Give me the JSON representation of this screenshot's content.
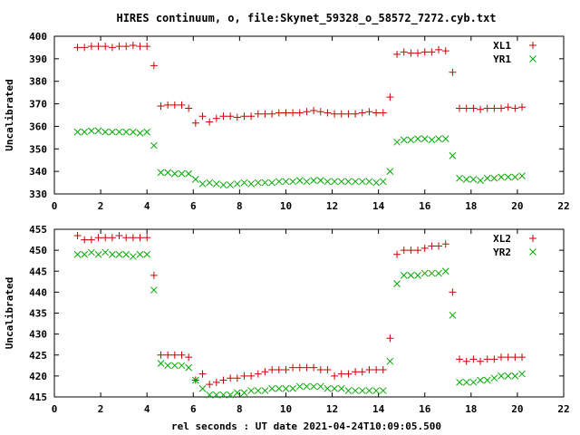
{
  "chart_title": "HIRES continuum, o, file:Skynet_59328_o_58572_7272.cyb.txt",
  "chart_data": [
    {
      "type": "scatter",
      "ylabel": "Uncalibrated",
      "xlabel": "",
      "xlim": [
        0,
        22
      ],
      "ylim": [
        330,
        400
      ],
      "xticks": [
        0,
        2,
        4,
        6,
        8,
        10,
        12,
        14,
        16,
        18,
        20,
        22
      ],
      "yticks": [
        330,
        340,
        350,
        360,
        370,
        380,
        390,
        400
      ],
      "legend_position": "top-right",
      "series": [
        {
          "name": "XL1",
          "marker": "+",
          "color": "#cc0000",
          "x": [
            1.0,
            1.3,
            1.6,
            1.9,
            2.2,
            2.5,
            2.8,
            3.1,
            3.4,
            3.7,
            4.0,
            4.3,
            4.6,
            4.9,
            5.2,
            5.5,
            5.8,
            6.1,
            6.4,
            6.7,
            7.0,
            7.3,
            7.6,
            7.9,
            8.2,
            8.5,
            8.8,
            9.1,
            9.4,
            9.7,
            10.0,
            10.3,
            10.6,
            10.9,
            11.2,
            11.5,
            11.8,
            12.1,
            12.4,
            12.7,
            13.0,
            13.3,
            13.6,
            13.9,
            14.2,
            14.5,
            14.8,
            15.1,
            15.4,
            15.7,
            16.0,
            16.3,
            16.6,
            16.9,
            17.2,
            17.5,
            17.8,
            18.1,
            18.4,
            18.7,
            19.0,
            19.3,
            19.6,
            19.9,
            20.2
          ],
          "y": [
            395,
            395,
            395.5,
            395.5,
            395.5,
            395,
            395.5,
            395.5,
            396,
            395.5,
            395.5,
            387,
            369,
            369.5,
            369.5,
            369.5,
            368,
            361.5,
            364.5,
            362,
            363.5,
            364.5,
            364.5,
            364,
            364.5,
            364.5,
            365.5,
            365.5,
            365.5,
            366,
            366,
            366,
            366,
            366.5,
            367,
            366.5,
            366,
            365.5,
            365.5,
            365.5,
            365.5,
            366,
            366.5,
            366,
            366,
            373,
            392,
            393,
            392.5,
            392.5,
            393,
            393,
            394,
            393.5,
            384,
            368,
            368,
            368,
            367.5,
            368,
            368,
            368,
            368.5,
            368,
            368.5
          ]
        },
        {
          "name": "YR1",
          "marker": "x",
          "color": "#00aa00",
          "x": [
            1.0,
            1.3,
            1.6,
            1.9,
            2.2,
            2.5,
            2.8,
            3.1,
            3.4,
            3.7,
            4.0,
            4.3,
            4.6,
            4.9,
            5.2,
            5.5,
            5.8,
            6.1,
            6.4,
            6.7,
            7.0,
            7.3,
            7.6,
            7.9,
            8.2,
            8.5,
            8.8,
            9.1,
            9.4,
            9.7,
            10.0,
            10.3,
            10.6,
            10.9,
            11.2,
            11.5,
            11.8,
            12.1,
            12.4,
            12.7,
            13.0,
            13.3,
            13.6,
            13.9,
            14.2,
            14.5,
            14.8,
            15.1,
            15.4,
            15.7,
            16.0,
            16.3,
            16.6,
            16.9,
            17.2,
            17.5,
            17.8,
            18.1,
            18.4,
            18.7,
            19.0,
            19.3,
            19.6,
            19.9,
            20.2
          ],
          "y": [
            357.5,
            357.5,
            358,
            358,
            357.5,
            357.5,
            357.5,
            357.5,
            357.5,
            357,
            357.5,
            351.5,
            339.5,
            339.5,
            339,
            339,
            339,
            336.5,
            334.5,
            335,
            334.5,
            334,
            334,
            334.5,
            335,
            334.5,
            335,
            335,
            335,
            335.5,
            335.5,
            335.5,
            336,
            335.5,
            336,
            336,
            335.5,
            335.5,
            335.5,
            335.5,
            335.5,
            335.5,
            335.5,
            335,
            335.5,
            340,
            353,
            354,
            354,
            354.5,
            354.5,
            354,
            354.5,
            354.5,
            347,
            337,
            336.5,
            336.5,
            336,
            337,
            337,
            337.5,
            337.5,
            337.5,
            338
          ]
        }
      ]
    },
    {
      "type": "scatter",
      "ylabel": "Uncalibrated",
      "xlabel": "rel seconds : UT date 2021-04-24T10:09:05.500",
      "xlim": [
        0,
        22
      ],
      "ylim": [
        415,
        455
      ],
      "xticks": [
        0,
        2,
        4,
        6,
        8,
        10,
        12,
        14,
        16,
        18,
        20,
        22
      ],
      "yticks": [
        415,
        420,
        425,
        430,
        435,
        440,
        445,
        450,
        455
      ],
      "legend_position": "top-right",
      "series": [
        {
          "name": "XL2",
          "marker": "+",
          "color": "#cc0000",
          "x": [
            1.0,
            1.3,
            1.6,
            1.9,
            2.2,
            2.5,
            2.8,
            3.1,
            3.4,
            3.7,
            4.0,
            4.3,
            4.6,
            4.9,
            5.2,
            5.5,
            5.8,
            6.1,
            6.4,
            6.7,
            7.0,
            7.3,
            7.6,
            7.9,
            8.2,
            8.5,
            8.8,
            9.1,
            9.4,
            9.7,
            10.0,
            10.3,
            10.6,
            10.9,
            11.2,
            11.5,
            11.8,
            12.1,
            12.4,
            12.7,
            13.0,
            13.3,
            13.6,
            13.9,
            14.2,
            14.5,
            14.8,
            15.1,
            15.4,
            15.7,
            16.0,
            16.3,
            16.6,
            16.9,
            17.2,
            17.5,
            17.8,
            18.1,
            18.4,
            18.7,
            19.0,
            19.3,
            19.6,
            19.9,
            20.2
          ],
          "y": [
            453.5,
            452.5,
            452.5,
            453,
            453,
            453,
            453.5,
            453,
            453,
            453,
            453,
            444,
            425,
            425,
            425,
            425,
            424.5,
            419,
            420.5,
            418,
            418.5,
            419,
            419.5,
            419.5,
            420,
            420,
            420.5,
            421,
            421.5,
            421.5,
            421.5,
            422,
            422,
            422,
            422,
            421.5,
            421.5,
            420,
            420.5,
            420.5,
            421,
            421,
            421.5,
            421.5,
            421.5,
            429,
            449,
            450,
            450,
            450,
            450.5,
            451,
            451,
            451.5,
            440,
            424,
            423.5,
            424,
            423.5,
            424,
            424,
            424.5,
            424.5,
            424.5,
            424.5
          ]
        },
        {
          "name": "YR2",
          "marker": "x",
          "color": "#00aa00",
          "x": [
            1.0,
            1.3,
            1.6,
            1.9,
            2.2,
            2.5,
            2.8,
            3.1,
            3.4,
            3.7,
            4.0,
            4.3,
            4.6,
            4.9,
            5.2,
            5.5,
            5.8,
            6.1,
            6.4,
            6.7,
            7.0,
            7.3,
            7.6,
            7.9,
            8.2,
            8.5,
            8.8,
            9.1,
            9.4,
            9.7,
            10.0,
            10.3,
            10.6,
            10.9,
            11.2,
            11.5,
            11.8,
            12.1,
            12.4,
            12.7,
            13.0,
            13.3,
            13.6,
            13.9,
            14.2,
            14.5,
            14.8,
            15.1,
            15.4,
            15.7,
            16.0,
            16.3,
            16.6,
            16.9,
            17.2,
            17.5,
            17.8,
            18.1,
            18.4,
            18.7,
            19.0,
            19.3,
            19.6,
            19.9,
            20.2
          ],
          "y": [
            449,
            449,
            449.5,
            449,
            449.5,
            449,
            449,
            449,
            448.5,
            449,
            449,
            440.5,
            423,
            422.5,
            422.5,
            422.5,
            422,
            419,
            417,
            415.5,
            415.5,
            415.5,
            415.5,
            416,
            416,
            416.5,
            416.5,
            416.5,
            417,
            417,
            417,
            417,
            417.5,
            417.5,
            417.5,
            417.5,
            417,
            417,
            417,
            416.5,
            416.5,
            416.5,
            416.5,
            416.5,
            416.5,
            423.5,
            442,
            444,
            444,
            444,
            444.5,
            444.5,
            444.5,
            445,
            434.5,
            418.5,
            418.5,
            418.5,
            419,
            419,
            419.5,
            420,
            420,
            420,
            420.5
          ]
        }
      ]
    }
  ]
}
